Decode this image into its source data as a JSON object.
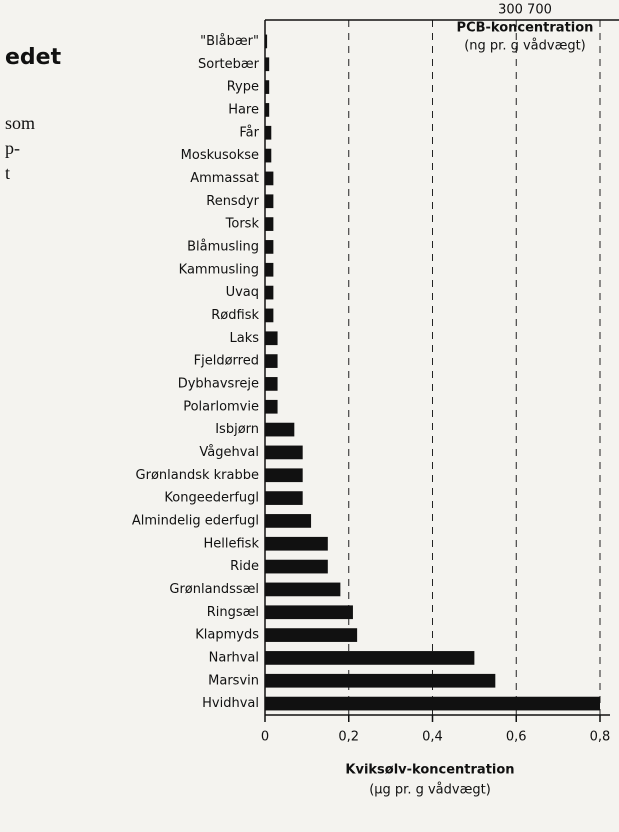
{
  "page_text": [
    "edet",
    "som",
    "p-",
    "t"
  ],
  "chart_data": {
    "type": "barh",
    "corner_label": "300  700",
    "corner_title": [
      "PCB-koncentration",
      "(ng pr. g vådvægt)"
    ],
    "xlabel": [
      "Kviksølv-koncentration",
      "(µg pr. g vådvægt)"
    ],
    "categories": [
      "\"Blåbær\"",
      "Sortebær",
      "Rype",
      "Hare",
      "Får",
      "Moskusokse",
      "Ammassat",
      "Rensdyr",
      "Torsk",
      "Blåmusling",
      "Kammusling",
      "Uvaq",
      "Rødfisk",
      "Laks",
      "Fjeldørred",
      "Dybhavsreje",
      "Polarlomvie",
      "Isbjørn",
      "Vågehval",
      "Grønlandsk krabbe",
      "Kongeederfugl",
      "Almindelig ederfugl",
      "Hellefisk",
      "Ride",
      "Grønlandssæl",
      "Ringsæl",
      "Klapmyds",
      "Narhval",
      "Marsvin",
      "Hvidhval"
    ],
    "values": [
      0.005,
      0.01,
      0.01,
      0.01,
      0.015,
      0.015,
      0.02,
      0.02,
      0.02,
      0.02,
      0.02,
      0.02,
      0.02,
      0.03,
      0.03,
      0.03,
      0.03,
      0.07,
      0.09,
      0.09,
      0.09,
      0.11,
      0.15,
      0.15,
      0.18,
      0.21,
      0.22,
      0.5,
      0.55,
      0.8
    ],
    "color": "#111111",
    "xlim": [
      0,
      0.8
    ],
    "xticks": [
      0,
      {
        "value": 0.2,
        "label": "0,2"
      },
      {
        "value": 0.4,
        "label": "0,4"
      },
      {
        "value": 0.6,
        "label": "0,6"
      },
      {
        "value": 0.8,
        "label": "0,8"
      }
    ],
    "grid": true
  }
}
